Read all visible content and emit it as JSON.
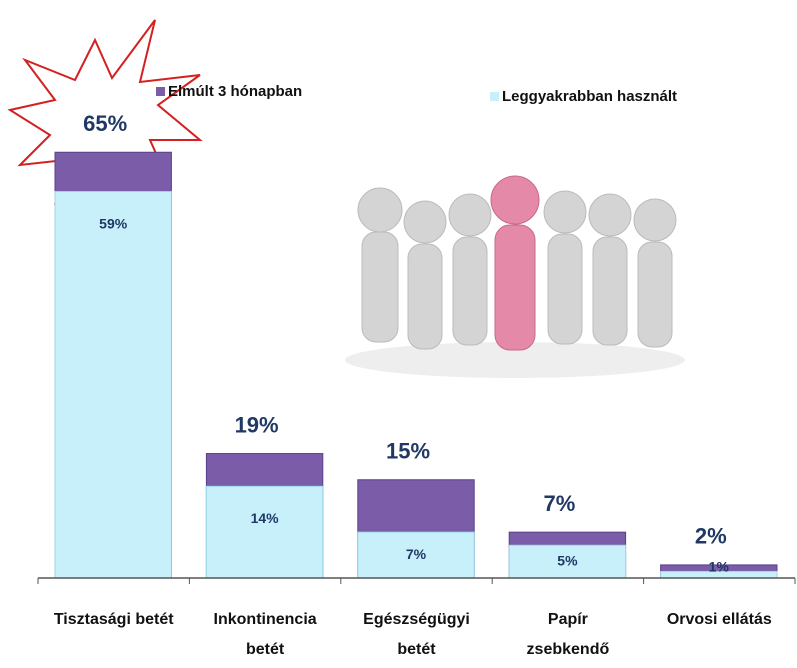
{
  "chart_data": {
    "type": "overlap-bar",
    "categories": [
      "Tisztasági betét",
      "Inkontinencia\nbetét",
      "Egészségügyi\nbetét",
      "Papír\nzsebkendő",
      "Orvosi ellátás"
    ],
    "series": [
      {
        "name": "Elmúlt 3 hónapban",
        "color": "#7a5ca8",
        "values": [
          65,
          19,
          15,
          7,
          2
        ],
        "value_labels": [
          "65%",
          "19%",
          "15%",
          "7%",
          "2%"
        ]
      },
      {
        "name": "Leggyakrabban használt",
        "color": "#c8f0fb",
        "values": [
          59,
          14,
          7,
          5,
          1
        ],
        "value_labels": [
          "59%",
          "14%",
          "7%",
          "5%",
          "1%"
        ]
      }
    ],
    "ylim": [
      0,
      70
    ]
  }
}
